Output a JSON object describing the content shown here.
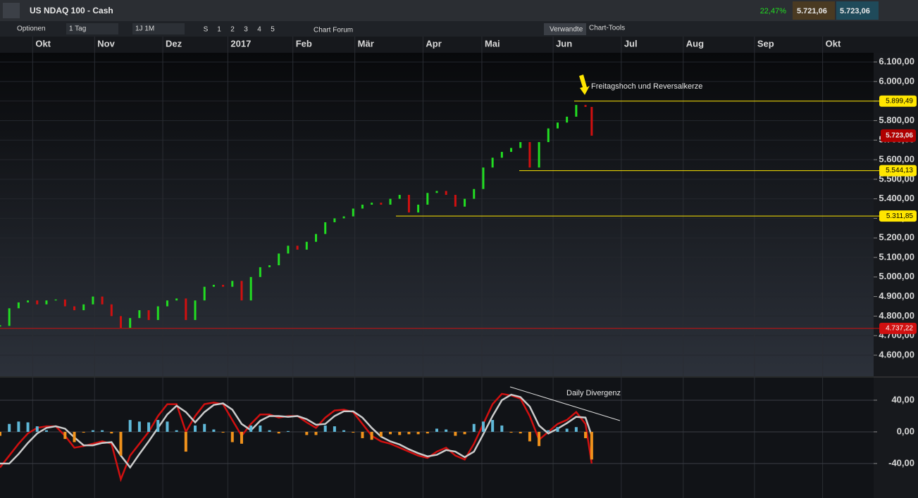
{
  "toolbar": {
    "instrument": "US NDAQ 100 - Cash",
    "change": "22,47%",
    "bid": "5.721,06",
    "ask": "5.723,06",
    "options": "Optionen",
    "interval": "1 Tag",
    "range": "1J 1M",
    "buttons": [
      "S",
      "1",
      "2",
      "3",
      "4",
      "5"
    ],
    "forum": "Chart Forum",
    "related": "Verwandte",
    "tools": "Chart-Tools"
  },
  "chart_data": [
    {
      "type": "candles",
      "x": [
        0,
        3,
        6,
        9,
        12,
        15,
        18,
        21,
        24,
        27,
        30,
        33,
        36,
        39,
        42,
        45,
        48,
        51,
        54,
        57,
        60,
        63,
        66,
        69,
        72,
        75,
        78,
        81,
        84,
        87,
        90,
        93,
        96,
        99,
        102,
        105,
        108,
        111,
        114,
        117,
        120,
        123,
        126,
        129,
        132,
        135,
        138,
        141,
        144,
        147,
        150,
        153,
        156,
        159,
        162,
        165,
        168,
        171,
        174,
        177,
        180,
        183,
        186,
        189,
        191
      ],
      "values": [
        4750,
        4840,
        4870,
        4880,
        4860,
        4880,
        4885,
        4850,
        4830,
        4860,
        4900,
        4860,
        4800,
        4740,
        4790,
        4830,
        4780,
        4850,
        4880,
        4890,
        4780,
        4880,
        4950,
        4960,
        4950,
        4980,
        4880,
        5000,
        5050,
        5060,
        5120,
        5160,
        5140,
        5180,
        5220,
        5280,
        5300,
        5310,
        5350,
        5370,
        5380,
        5370,
        5400,
        5420,
        5330,
        5370,
        5430,
        5440,
        5420,
        5360,
        5400,
        5450,
        5560,
        5610,
        5640,
        5660,
        5690,
        5560,
        5690,
        5760,
        5790,
        5820,
        5880,
        5870,
        5723
      ],
      "up_color": "#22dd22",
      "down_color": "#d01010",
      "xlim": [
        0,
        282
      ],
      "xticks": [
        {
          "value": 16,
          "label": "Okt"
        },
        {
          "value": 36,
          "label": "Nov"
        },
        {
          "value": 58,
          "label": "Dez"
        },
        {
          "value": 79,
          "label": "2017"
        },
        {
          "value": 100,
          "label": "Feb"
        },
        {
          "value": 120,
          "label": "Mär"
        },
        {
          "value": 142,
          "label": "Apr"
        },
        {
          "value": 161,
          "label": "Mai"
        },
        {
          "value": 184,
          "label": "Jun"
        },
        {
          "value": 206,
          "label": "Jul"
        },
        {
          "value": 226,
          "label": "Aug"
        },
        {
          "value": 249,
          "label": "Sep"
        },
        {
          "value": 271,
          "label": "Okt"
        }
      ],
      "ylim": [
        4492,
        6147
      ],
      "yticks": [
        {
          "value": 6100,
          "label": "6.100,00"
        },
        {
          "value": 6000,
          "label": "6.000,00"
        },
        {
          "value": 5900,
          "label": "5.900,00"
        },
        {
          "value": 5800,
          "label": "5.800,00"
        },
        {
          "value": 5700,
          "label": "5.700,00"
        },
        {
          "value": 5600,
          "label": "5.600,00"
        },
        {
          "value": 5500,
          "label": "5.500,00"
        },
        {
          "value": 5400,
          "label": "5.400,00"
        },
        {
          "value": 5300,
          "label": "5.300,00"
        },
        {
          "value": 5200,
          "label": "5.200,00"
        },
        {
          "value": 5100,
          "label": "5.100,00"
        },
        {
          "value": 5000,
          "label": "5.000,00"
        },
        {
          "value": 4900,
          "label": "4.900,00"
        },
        {
          "value": 4800,
          "label": "4.800,00"
        },
        {
          "value": 4700,
          "label": "4.700,00"
        },
        {
          "value": 4600,
          "label": "4.600,00"
        }
      ],
      "levels": [
        {
          "value": 5899.49,
          "label": "5.899,49",
          "color": "#ffe600"
        },
        {
          "value": 5544.13,
          "label": "5.544,13",
          "color": "#ffe600"
        },
        {
          "value": 5311.85,
          "label": "5.311,85",
          "color": "#ffe600"
        },
        {
          "value": 4737.22,
          "label": "4.737,22",
          "color": "#d01010"
        }
      ],
      "last": {
        "value": 5723.06,
        "label": "5.723,06",
        "color": "#b00000"
      },
      "annotation": "Freitagshoch und Reversalkerze"
    },
    {
      "type": "macd",
      "x": [
        0,
        3,
        6,
        9,
        12,
        15,
        18,
        21,
        24,
        27,
        30,
        33,
        36,
        39,
        42,
        45,
        48,
        51,
        54,
        57,
        60,
        63,
        66,
        69,
        72,
        75,
        78,
        81,
        84,
        87,
        90,
        93,
        96,
        99,
        102,
        105,
        108,
        111,
        114,
        117,
        120,
        123,
        126,
        129,
        132,
        135,
        138,
        141,
        144,
        147,
        150,
        153,
        156,
        159,
        162,
        165,
        168,
        171,
        174,
        177,
        180,
        183,
        186,
        189,
        191
      ],
      "series": [
        {
          "type": "line",
          "color": "#d01010",
          "values": [
            -45,
            -30,
            -15,
            -2,
            5,
            7,
            7,
            -5,
            -20,
            -18,
            -15,
            -12,
            -15,
            -60,
            -30,
            -15,
            0,
            20,
            35,
            35,
            0,
            20,
            35,
            37,
            35,
            15,
            -5,
            10,
            22,
            22,
            18,
            20,
            20,
            12,
            5,
            18,
            27,
            28,
            25,
            10,
            -5,
            -12,
            -15,
            -20,
            -25,
            -30,
            -33,
            -25,
            -20,
            -30,
            -35,
            -15,
            10,
            35,
            48,
            46,
            42,
            20,
            -10,
            0,
            10,
            15,
            25,
            10,
            -40
          ]
        },
        {
          "type": "line",
          "color": "#cccccc",
          "values": [
            -40,
            -40,
            -28,
            -14,
            -2,
            5,
            7,
            4,
            -7,
            -17,
            -17,
            -14,
            -13,
            -30,
            -45,
            -28,
            -12,
            5,
            22,
            33,
            25,
            12,
            25,
            34,
            36,
            28,
            10,
            2,
            14,
            20,
            20,
            19,
            20,
            16,
            9,
            10,
            20,
            26,
            26,
            18,
            5,
            -6,
            -12,
            -16,
            -22,
            -27,
            -31,
            -29,
            -23,
            -25,
            -32,
            -25,
            -3,
            20,
            40,
            47,
            44,
            32,
            8,
            -2,
            4,
            11,
            19,
            18,
            -5
          ]
        },
        {
          "type": "bar",
          "color": "#5fb8d8",
          "negative_color": "#f0921c",
          "values": [
            -5,
            10,
            13,
            12,
            7,
            2,
            0,
            -9,
            -13,
            -1,
            2,
            2,
            -2,
            -30,
            15,
            13,
            12,
            15,
            13,
            2,
            -25,
            8,
            10,
            3,
            -1,
            -13,
            -15,
            8,
            8,
            2,
            -2,
            1,
            0,
            -4,
            -4,
            8,
            7,
            2,
            -1,
            -8,
            -10,
            -6,
            -3,
            -4,
            -3,
            -3,
            -2,
            4,
            3,
            -5,
            -3,
            10,
            13,
            15,
            8,
            -1,
            -2,
            -12,
            -18,
            2,
            6,
            4,
            6,
            -8,
            -35
          ]
        }
      ],
      "xlim": [
        0,
        282
      ],
      "ylim": [
        -83.6,
        68.4
      ],
      "yticks": [
        {
          "value": 40,
          "label": "40,00"
        },
        {
          "value": 0,
          "label": "0,00"
        },
        {
          "value": -40,
          "label": "-40,00"
        }
      ],
      "annotation": "Daily Divergenz"
    }
  ]
}
